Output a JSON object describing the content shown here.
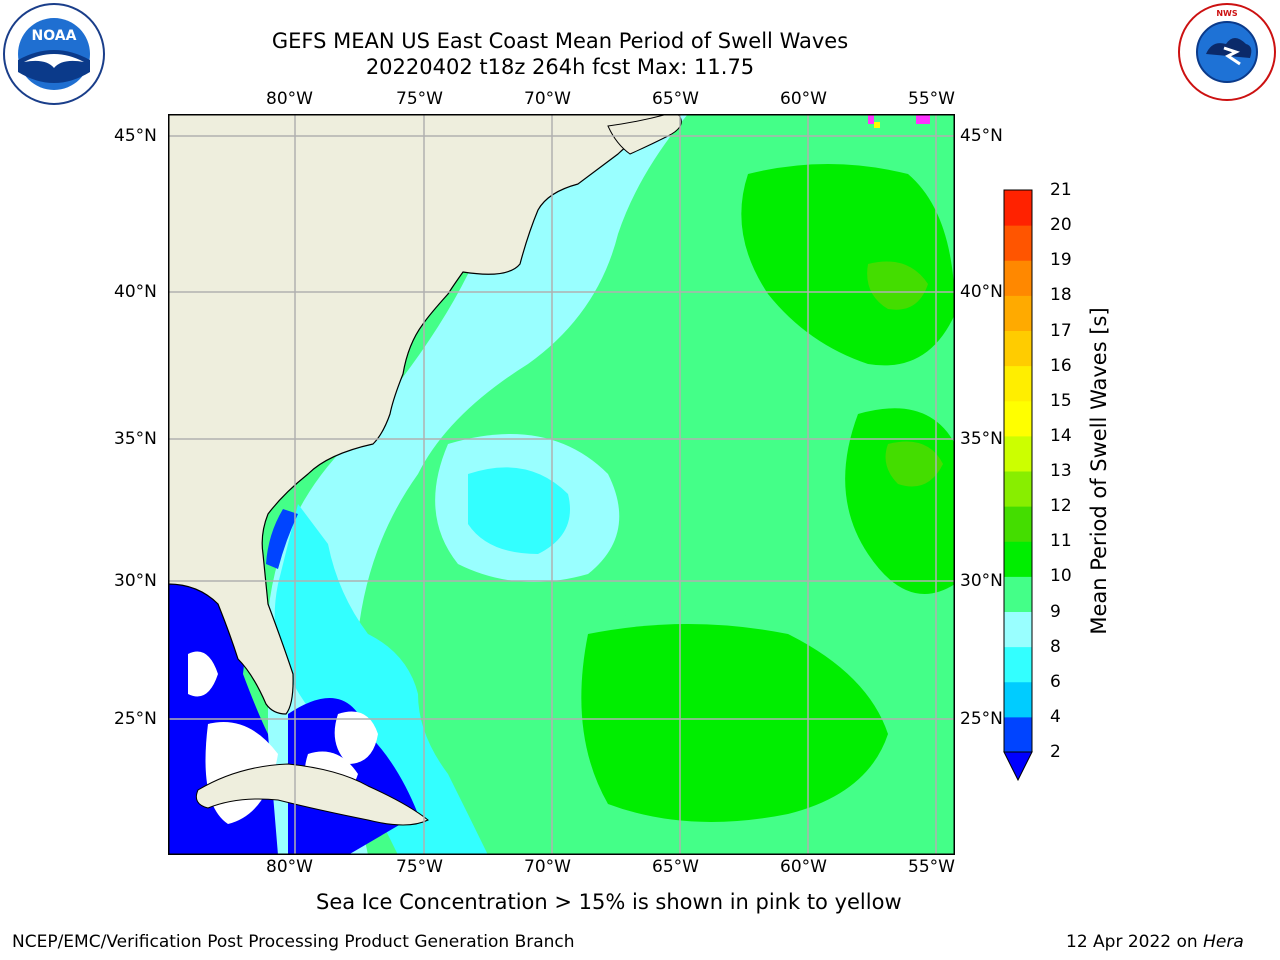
{
  "title": {
    "line1": "GEFS MEAN US East Coast Mean Period of Swell Waves",
    "line2": "20220402 t18z 264h fcst   Max: 11.75"
  },
  "map": {
    "lon_ticks_top": [
      "80°W",
      "75°W",
      "70°W",
      "65°W",
      "60°W",
      "55°W"
    ],
    "lon_ticks_bottom": [
      "80°W",
      "75°W",
      "70°W",
      "65°W",
      "60°W",
      "55°W"
    ],
    "lat_ticks_left": [
      "45°N",
      "40°N",
      "35°N",
      "30°N",
      "25°N"
    ],
    "lat_ticks_right": [
      "45°N",
      "40°N",
      "35°N",
      "30°N",
      "25°N"
    ],
    "lon_range": [
      -85,
      -54
    ],
    "lat_range": [
      20.5,
      46.5
    ],
    "colors": {
      "land": "#eeeedd",
      "no_data": "#ffffff",
      "grid": "#b0b0b0",
      "coast": "#000000"
    }
  },
  "colorbar": {
    "title": "Mean Period of Swell Waves [s]",
    "levels": [
      "2",
      "4",
      "6",
      "8",
      "9",
      "10",
      "11",
      "12",
      "13",
      "14",
      "15",
      "16",
      "17",
      "18",
      "19",
      "20",
      "21"
    ],
    "colors": [
      "#0044ff",
      "#00ccff",
      "#33ffff",
      "#99ffff",
      "#44ff88",
      "#00ee00",
      "#44dd00",
      "#88ee00",
      "#ccff00",
      "#ffff00",
      "#ffee00",
      "#ffcc00",
      "#ffaa00",
      "#ff8800",
      "#ff5500",
      "#ff2200",
      "#ff0000"
    ],
    "under_color": "#0000ff"
  },
  "caption": "Sea Ice Concentration > 15% is shown in pink to yellow",
  "footer": {
    "left": "NCEP/EMC/Verification Post Processing Product Generation Branch",
    "right_prefix": "12 Apr 2022 on ",
    "right_machine": "Hera"
  },
  "logos": {
    "left_text": "NOAA",
    "right_text": "NATIONAL WEATHER SERVICE"
  }
}
